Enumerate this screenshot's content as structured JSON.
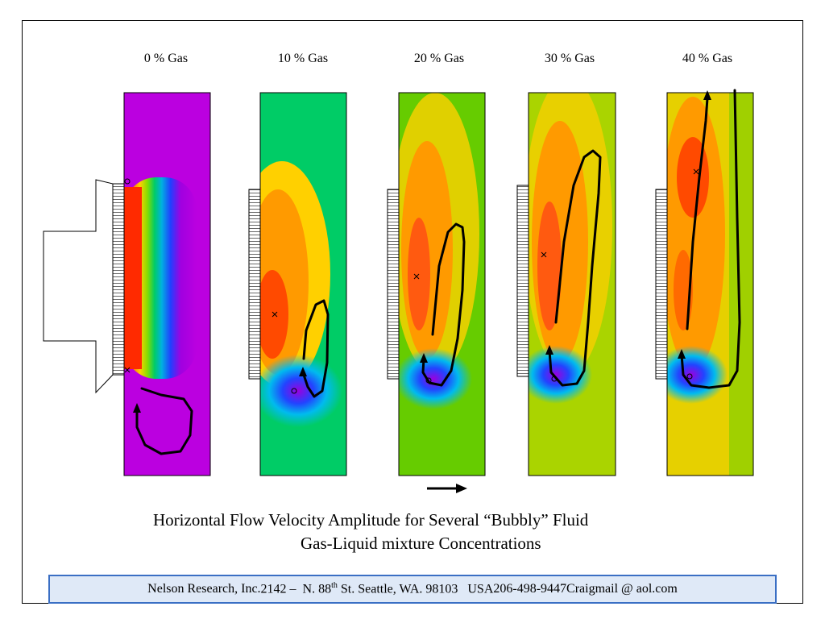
{
  "panels": [
    {
      "label": "0 % Gas"
    },
    {
      "label": "10 % Gas"
    },
    {
      "label": "20 % Gas"
    },
    {
      "label": "30 % Gas"
    },
    {
      "label": "40 % Gas"
    }
  ],
  "caption": {
    "line1": "Horizontal Flow Velocity Amplitude for Several “Bubbly” Fluid",
    "line2": "Gas-Liquid mixture Concentrations"
  },
  "footer": {
    "company": "Nelson Research, Inc.",
    "address_pre": "2142 –  N. 88",
    "address_sup": "th",
    "address_post": " St. Seattle, WA. 98103   USA",
    "phone": "206-498-9447",
    "email": "Craigmail @ aol.com"
  },
  "colors": {
    "footer_border": "#3a6fc4",
    "footer_fill": "#dfe9f7",
    "flow_line": "#000000"
  }
}
